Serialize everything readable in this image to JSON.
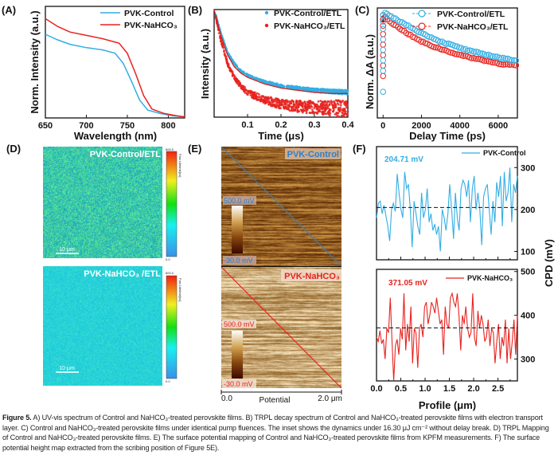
{
  "panels": {
    "a": {
      "letter": "(A)"
    },
    "b": {
      "letter": "(B)"
    },
    "c": {
      "letter": "(C)"
    },
    "d": {
      "letter": "(D)",
      "top_label": "PVK-Control/ETL",
      "bottom_label": "PVK-NaHCO₃ /ETL",
      "scale_bar": "10 μm",
      "colorbar_max": "600.0",
      "colorbar_min": "0.0",
      "colorbar_title": "Fast Lifetime[ns]"
    },
    "e": {
      "letter": "(E)",
      "top_label": "PVK-Control",
      "bottom_label": "PVK-NaHCO₃",
      "colorbar_max": "500.0 mV",
      "colorbar_min": "-30.0 mV",
      "axis_start": "0.0",
      "axis_title": "Potential",
      "axis_end": "2.0 μm"
    },
    "f": {
      "letter": "(F)"
    }
  },
  "colors": {
    "control": "#33aee3",
    "nahco3": "#e8231f"
  },
  "chart_data": [
    {
      "id": "A",
      "type": "line",
      "xlabel": "Wavelength (nm)",
      "ylabel": "Norm. Intensity (a.u.)",
      "xlim": [
        650,
        820
      ],
      "ylim": [
        0,
        1
      ],
      "xticks": [
        650,
        700,
        750,
        800
      ],
      "legend": "top-right",
      "series": [
        {
          "name": "PVK-Control",
          "x": [
            650,
            665,
            680,
            700,
            720,
            735,
            745,
            755,
            765,
            775,
            790,
            805,
            820
          ],
          "y": [
            0.75,
            0.7,
            0.66,
            0.63,
            0.61,
            0.58,
            0.49,
            0.33,
            0.16,
            0.07,
            0.04,
            0.02,
            0.01
          ]
        },
        {
          "name": "PVK-NaHCO₃",
          "x": [
            650,
            665,
            680,
            700,
            720,
            740,
            750,
            760,
            770,
            780,
            795,
            810,
            820
          ],
          "y": [
            0.89,
            0.82,
            0.77,
            0.74,
            0.71,
            0.67,
            0.58,
            0.4,
            0.2,
            0.08,
            0.04,
            0.02,
            0.01
          ]
        }
      ]
    },
    {
      "id": "B",
      "type": "scatter",
      "xlabel": "Time (μs)",
      "ylabel": "Intensity (a.u.)",
      "xlim": [
        0.0,
        0.4
      ],
      "ylim": [
        0,
        1
      ],
      "xticks": [
        0.1,
        0.2,
        0.3,
        0.4
      ],
      "legend": "top-right",
      "series": [
        {
          "name": "PVK-Control/ETL",
          "x": [
            0.0,
            0.02,
            0.04,
            0.06,
            0.08,
            0.1,
            0.15,
            0.2,
            0.25,
            0.3,
            0.35,
            0.4
          ],
          "y": [
            1.0,
            0.78,
            0.6,
            0.5,
            0.43,
            0.39,
            0.33,
            0.29,
            0.27,
            0.25,
            0.24,
            0.23
          ]
        },
        {
          "name": "PVK-NaHCO₃/ETL",
          "x": [
            0.0,
            0.02,
            0.04,
            0.06,
            0.08,
            0.1,
            0.15,
            0.2,
            0.25,
            0.3,
            0.35,
            0.4
          ],
          "y": [
            1.0,
            0.72,
            0.5,
            0.37,
            0.29,
            0.23,
            0.16,
            0.12,
            0.1,
            0.09,
            0.085,
            0.08
          ]
        }
      ],
      "fit": {
        "x": [
          0.0,
          0.02,
          0.04,
          0.06,
          0.08,
          0.1,
          0.15,
          0.2,
          0.25,
          0.3,
          0.35,
          0.4
        ],
        "y": [
          1.0,
          0.76,
          0.58,
          0.47,
          0.41,
          0.37,
          0.31,
          0.27,
          0.25,
          0.23,
          0.22,
          0.22
        ]
      }
    },
    {
      "id": "C",
      "type": "line",
      "xlabel": "Delay Time (ps)",
      "ylabel": "Norm. ΔA (a.u.)",
      "xlim": [
        -300,
        7000
      ],
      "ylim": [
        0,
        1.05
      ],
      "xticks": [
        0,
        2000,
        4000,
        6000
      ],
      "yticks": [
        1
      ],
      "legend": "top-right",
      "series": [
        {
          "name": "PVK-Control/ETL",
          "x": [
            0,
            0,
            0,
            0,
            0,
            0,
            0,
            0,
            100,
            200,
            500,
            1000,
            1500,
            2000,
            2500,
            3000,
            3500,
            4000,
            4500,
            5000,
            5500,
            6000,
            6500,
            7000
          ],
          "y": [
            0.25,
            0.45,
            0.55,
            0.65,
            0.75,
            0.85,
            0.92,
            0.98,
            1.0,
            0.99,
            0.96,
            0.91,
            0.86,
            0.81,
            0.77,
            0.73,
            0.7,
            0.67,
            0.64,
            0.62,
            0.6,
            0.58,
            0.56,
            0.55
          ]
        },
        {
          "name": "PVK-NaHCO₃/ETL",
          "x": [
            0,
            0,
            0,
            0,
            0,
            0,
            0,
            100,
            200,
            500,
            1000,
            1500,
            2000,
            2500,
            3000,
            3500,
            4000,
            4500,
            5000,
            5500,
            6000,
            6500,
            7000
          ],
          "y": [
            0.4,
            0.5,
            0.6,
            0.7,
            0.8,
            0.88,
            0.94,
            0.97,
            0.95,
            0.9,
            0.84,
            0.78,
            0.73,
            0.69,
            0.66,
            0.63,
            0.6,
            0.58,
            0.56,
            0.54,
            0.52,
            0.51,
            0.5
          ]
        }
      ]
    },
    {
      "id": "F-top",
      "type": "line",
      "ylabel": "CPD (mV)",
      "xlim": [
        0,
        2.9
      ],
      "ylim": [
        80,
        350
      ],
      "yticks": [
        100,
        200,
        300
      ],
      "legend": "top-right",
      "annotation": "204.71 mV",
      "mean": 204.71,
      "series": [
        {
          "name": "PVK-Control",
          "y": [
            180,
            215,
            220,
            190,
            210,
            185,
            160,
            125,
            200,
            215,
            195,
            285,
            240,
            200,
            180,
            290,
            250,
            260,
            200,
            110,
            220,
            190,
            160,
            140,
            240,
            180,
            200,
            250,
            170,
            190,
            150,
            165,
            140,
            160,
            100,
            200,
            180,
            150,
            190,
            260,
            200,
            130,
            240,
            180,
            150,
            250,
            270,
            260,
            230,
            270,
            170,
            250,
            280,
            200,
            240,
            200,
            115,
            230,
            250,
            260,
            200,
            140,
            220,
            170,
            265,
            230,
            280,
            160,
            290,
            220,
            240,
            300,
            170,
            260,
            240,
            280
          ]
        }
      ]
    },
    {
      "id": "F-bottom",
      "type": "line",
      "xlabel": "Profile (μm)",
      "ylabel": "CPD (mV)",
      "xlim": [
        0,
        2.9
      ],
      "ylim": [
        250,
        505
      ],
      "yticks": [
        300,
        400,
        500
      ],
      "xticks": [
        0.0,
        0.5,
        1.0,
        1.5,
        2.0,
        2.5
      ],
      "legend": "top-right",
      "annotation": "371.05 mV",
      "mean": 371.05,
      "series": [
        {
          "name": "PVK-NaHCO₃",
          "y": [
            350,
            340,
            365,
            335,
            345,
            300,
            370,
            360,
            440,
            345,
            250,
            330,
            345,
            310,
            370,
            345,
            450,
            320,
            380,
            340,
            420,
            290,
            370,
            360,
            280,
            370,
            380,
            350,
            420,
            430,
            380,
            400,
            430,
            420,
            405,
            440,
            410,
            380,
            390,
            310,
            420,
            380,
            370,
            440,
            450,
            430,
            420,
            450,
            400,
            320,
            400,
            380,
            420,
            370,
            350,
            360,
            450,
            350,
            330,
            410,
            370,
            400,
            380,
            340,
            350,
            390,
            330,
            370,
            360,
            290,
            340,
            380,
            300,
            350,
            330,
            390,
            290,
            370,
            300,
            340,
            390,
            310,
            400
          ]
        }
      ]
    }
  ],
  "caption": {
    "label": "Figure 5.",
    "text": " A) UV-vis spectrum of Control and NaHCO₃-treated perovskite films. B) TRPL decay spectrum of Control and NaHCO₃-treated perovskite films with electron transport layer. C) Control and NaHCO₃-treated perovskite films under identical pump fluences. The inset shows the dynamics under 16.30 μJ cm⁻² without delay break. D) TRPL Mapping of Control and NaHCO₃-treated perovskite films. E) The surface potential mapping of Control and NaHCO₃-treated perovskite films from KPFM measurements. F) The surface potential height map extracted from the scribing position of Figure 5E)."
  }
}
